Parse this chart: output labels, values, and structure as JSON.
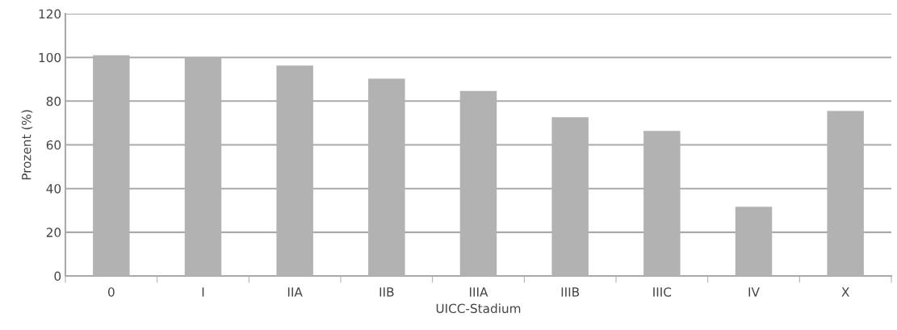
{
  "chart_data": {
    "type": "bar",
    "xlabel": "UICC-Stadium",
    "ylabel": "Prozent (%)",
    "categories": [
      "0",
      "I",
      "IIA",
      "IIB",
      "IIIA",
      "IIIB",
      "IIIC",
      "IV",
      "X"
    ],
    "values": [
      101,
      100,
      96.3,
      90.3,
      84.6,
      72.6,
      66.4,
      31.7,
      75.5
    ],
    "color": "#b1b2b1",
    "ylim": [
      0,
      120
    ],
    "yticks": [
      0,
      20,
      40,
      60,
      80,
      100,
      120
    ],
    "grid": "y",
    "legend": false
  }
}
